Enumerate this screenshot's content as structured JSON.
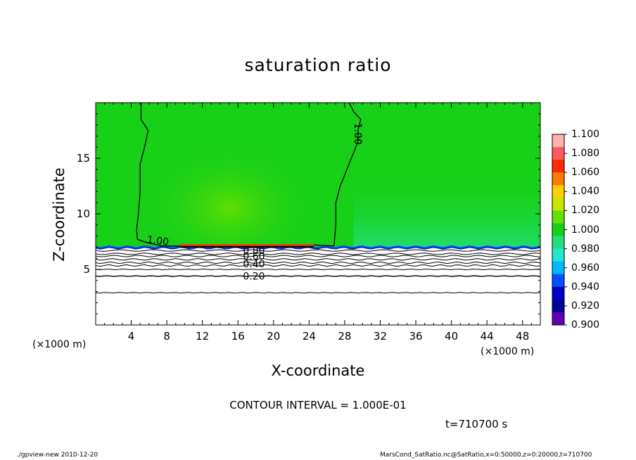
{
  "chart_data": {
    "type": "heatmap",
    "title": "saturation ratio",
    "xlabel": "X-coordinate",
    "ylabel": "Z-coordinate",
    "x_unit_label": "(×1000 m)",
    "xlim": [
      0,
      50
    ],
    "ylim": [
      0,
      20
    ],
    "x_ticks": [
      "4",
      "8",
      "12",
      "16",
      "20",
      "24",
      "28",
      "32",
      "36",
      "40",
      "44",
      "48"
    ],
    "y_ticks": [
      "5",
      "10",
      "15"
    ],
    "colorbar": {
      "labels": [
        "1.100",
        "1.080",
        "1.060",
        "1.040",
        "1.020",
        "1.000",
        "0.980",
        "0.960",
        "0.940",
        "0.920",
        "0.900"
      ],
      "colors": [
        "#ffb0b0",
        "#ff5a5a",
        "#ff2a00",
        "#ff7a00",
        "#ffd000",
        "#c8e600",
        "#66e000",
        "#18d018",
        "#20e07a",
        "#20e8d0",
        "#00b8ff",
        "#0050ff",
        "#0000c8",
        "#00009a",
        "#6000b0"
      ]
    },
    "contour_labels": [
      {
        "text": "1.00",
        "x": 7,
        "z": 7.6
      },
      {
        "text": "1.00",
        "x": 29.5,
        "z": 17.2
      },
      {
        "text": "0.80",
        "x": 17.8,
        "z": 6.7
      },
      {
        "text": "0.60",
        "x": 17.8,
        "z": 6.2
      },
      {
        "text": "0.40",
        "x": 17.8,
        "z": 5.5
      },
      {
        "text": "0.20",
        "x": 17.8,
        "z": 4.4
      }
    ],
    "contour_interval": "CONTOUR INTERVAL = 1.000E-01",
    "time": "t=710700 s"
  },
  "footer": {
    "left": "./gpview-new  2010-12-20",
    "right": "MarsCond_SatRatio.nc@SatRatio,x=0:50000,z=0:20000,t=710700"
  }
}
